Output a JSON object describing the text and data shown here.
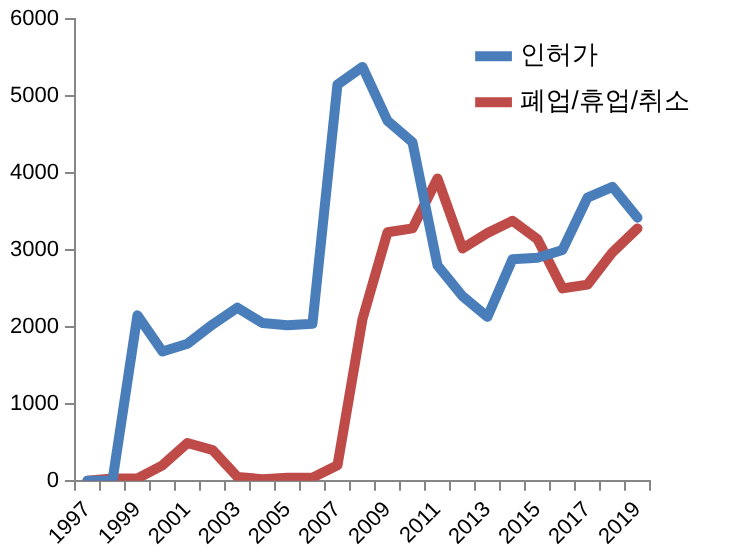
{
  "chart_data": {
    "type": "line",
    "categories": [
      "1997",
      null,
      "1999",
      null,
      "2001",
      null,
      "2003",
      null,
      "2005",
      null,
      "2007",
      null,
      "2009",
      null,
      "2011",
      null,
      "2013",
      null,
      "2015",
      null,
      "2017",
      null,
      "2019"
    ],
    "series": [
      {
        "name": "인허가",
        "color": "#4a7ebb",
        "values": [
          0,
          0,
          2150,
          1680,
          1780,
          2030,
          2250,
          2050,
          2020,
          2040,
          5150,
          5380,
          4680,
          4400,
          2800,
          2400,
          2130,
          2880,
          2900,
          3000,
          3680,
          3820,
          3420
        ]
      },
      {
        "name": "폐업/휴업/취소",
        "color": "#be4b48",
        "values": [
          0,
          30,
          30,
          200,
          490,
          400,
          50,
          20,
          40,
          40,
          200,
          2100,
          3230,
          3280,
          3930,
          3020,
          3220,
          3380,
          3140,
          2500,
          2550,
          2970,
          3280
        ]
      }
    ],
    "ylim": [
      0,
      6000
    ],
    "yticks": [
      0,
      1000,
      2000,
      3000,
      4000,
      5000,
      6000
    ],
    "grid": false,
    "legend": "top right",
    "marker": "none",
    "line_style": "solid"
  }
}
